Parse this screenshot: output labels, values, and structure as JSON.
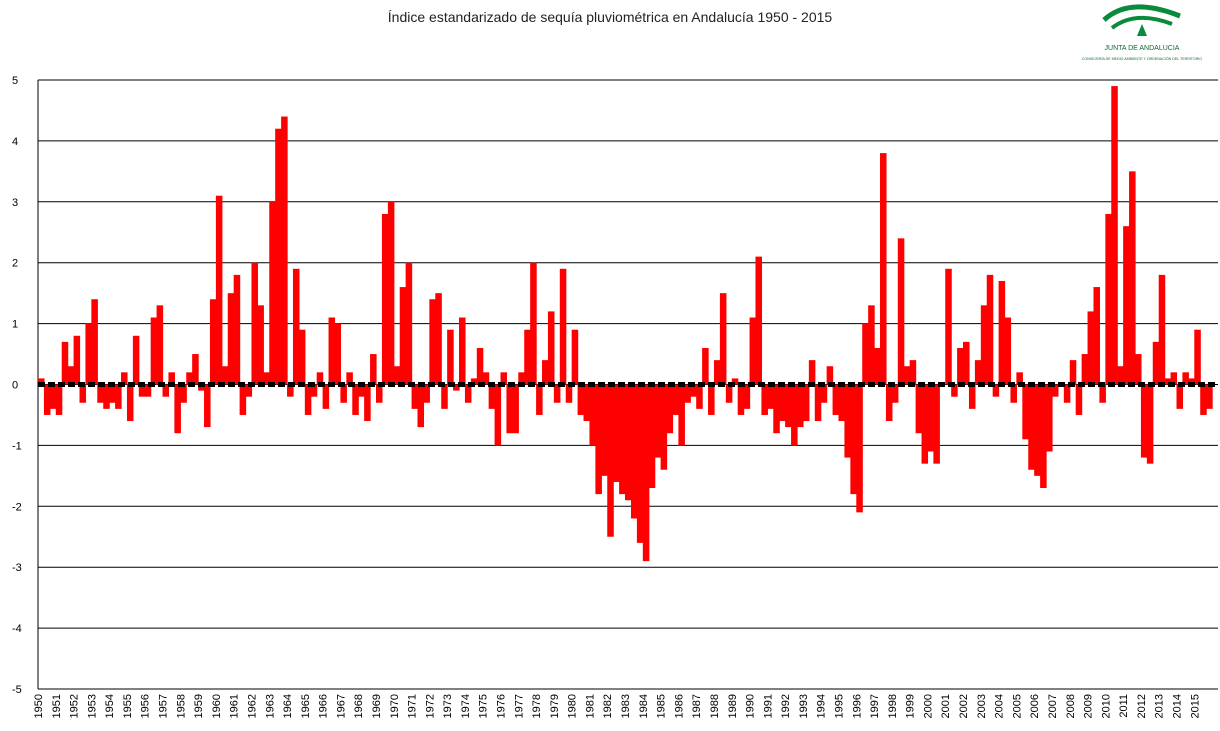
{
  "chart_data": {
    "type": "bar",
    "title": "Índice estandarizado de sequía pluviométrica en Andalucía 1950 - 2015",
    "logo": {
      "name": "JUNTA DE ANDALUCIA",
      "department": "CONSEJERÍA DE MEDIO AMBIENTE Y ORDENACIÓN DEL TERRITORIO"
    },
    "color": "#ff0000",
    "ylim": [
      -5,
      5
    ],
    "yticks": [
      -5,
      -4,
      -3,
      -2,
      -1,
      0,
      1,
      2,
      3,
      4,
      5
    ],
    "grid": true,
    "categories": [
      "1950",
      null,
      null,
      "1951",
      null,
      null,
      "1952",
      null,
      null,
      "1953",
      null,
      null,
      "1954",
      null,
      null,
      "1955",
      null,
      null,
      "1956",
      null,
      null,
      "1957",
      null,
      null,
      "1958",
      null,
      null,
      "1959",
      null,
      null,
      "1960",
      null,
      null,
      "1961",
      null,
      null,
      "1962",
      null,
      null,
      "1963",
      null,
      null,
      "1964",
      null,
      null,
      "1965",
      null,
      null,
      "1966",
      null,
      null,
      "1967",
      null,
      null,
      "1968",
      null,
      null,
      "1969",
      null,
      null,
      "1970",
      null,
      null,
      "1971",
      null,
      null,
      "1972",
      null,
      null,
      "1973",
      null,
      null,
      "1974",
      null,
      null,
      "1975",
      null,
      null,
      "1976",
      null,
      null,
      "1977",
      null,
      null,
      "1978",
      null,
      null,
      "1979",
      null,
      null,
      "1980",
      null,
      null,
      "1981",
      null,
      null,
      "1982",
      null,
      null,
      "1983",
      null,
      null,
      "1984",
      null,
      null,
      "1985",
      null,
      null,
      "1986",
      null,
      null,
      "1987",
      null,
      null,
      "1988",
      null,
      null,
      "1989",
      null,
      null,
      "1990",
      null,
      null,
      "1991",
      null,
      null,
      "1992",
      null,
      null,
      "1993",
      null,
      null,
      "1994",
      null,
      null,
      "1995",
      null,
      null,
      "1996",
      null,
      null,
      "1997",
      null,
      null,
      "1998",
      null,
      null,
      "1999",
      null,
      null,
      "2000",
      null,
      null,
      "2001",
      null,
      null,
      "2002",
      null,
      null,
      "2003",
      null,
      null,
      "2004",
      null,
      null,
      "2005",
      null,
      null,
      "2006",
      null,
      null,
      "2007",
      null,
      null,
      "2008",
      null,
      null,
      "2009",
      null,
      null,
      "2010",
      null,
      null,
      "2011",
      null,
      null,
      "2012",
      null,
      null,
      "2013",
      null,
      null,
      "2014",
      null,
      null,
      "2015",
      null,
      null
    ],
    "values": [
      0.1,
      -0.5,
      -0.4,
      -0.5,
      0.7,
      0.3,
      0.8,
      -0.3,
      1.0,
      1.4,
      -0.3,
      -0.4,
      -0.3,
      -0.4,
      0.2,
      -0.6,
      0.8,
      -0.2,
      -0.2,
      1.1,
      1.3,
      -0.2,
      0.2,
      -0.8,
      -0.3,
      0.2,
      0.5,
      -0.1,
      -0.7,
      1.4,
      3.1,
      0.3,
      1.5,
      1.8,
      -0.5,
      -0.2,
      2.0,
      1.3,
      0.2,
      3.0,
      4.2,
      4.4,
      -0.2,
      1.9,
      0.9,
      -0.5,
      -0.2,
      0.2,
      -0.4,
      1.1,
      1.0,
      -0.3,
      0.2,
      -0.5,
      -0.2,
      -0.6,
      0.5,
      -0.3,
      2.8,
      3.0,
      0.3,
      1.6,
      2.0,
      -0.4,
      -0.7,
      -0.3,
      1.4,
      1.5,
      -0.4,
      0.9,
      -0.1,
      1.1,
      -0.3,
      0.1,
      0.6,
      0.2,
      -0.4,
      -1.0,
      0.2,
      -0.8,
      -0.8,
      0.2,
      0.9,
      2.0,
      -0.5,
      0.4,
      1.2,
      -0.3,
      1.9,
      -0.3,
      0.9,
      -0.5,
      -0.6,
      -1.0,
      -1.8,
      -1.5,
      -2.5,
      -1.6,
      -1.8,
      -1.9,
      -2.2,
      -2.6,
      -2.9,
      -1.7,
      -1.2,
      -1.4,
      -0.8,
      -0.5,
      -1.0,
      -0.3,
      -0.2,
      -0.4,
      0.6,
      -0.5,
      0.4,
      1.5,
      -0.3,
      0.1,
      -0.5,
      -0.4,
      1.1,
      2.1,
      -0.5,
      -0.4,
      -0.8,
      -0.6,
      -0.7,
      -1.0,
      -0.7,
      -0.6,
      0.4,
      -0.6,
      -0.3,
      0.3,
      -0.5,
      -0.6,
      -1.2,
      -1.8,
      -2.1,
      1.0,
      1.3,
      0.6,
      3.8,
      -0.6,
      -0.3,
      2.4,
      0.3,
      0.4,
      -0.8,
      -1.3,
      -1.1,
      -1.3,
      0.0,
      1.9,
      -0.2,
      0.6,
      0.7,
      -0.4,
      0.4,
      1.3,
      1.8,
      -0.2,
      1.7,
      1.1,
      -0.3,
      0.2,
      -0.9,
      -1.4,
      -1.5,
      -1.7,
      -1.1,
      -0.2,
      0.0,
      -0.3,
      0.4,
      -0.5,
      0.5,
      1.2,
      1.6,
      -0.3,
      2.8,
      4.9,
      0.3,
      2.6,
      3.5,
      0.5,
      -1.2,
      -1.3,
      0.7,
      1.8,
      0.1,
      0.2,
      -0.4,
      0.2,
      0.1,
      0.9,
      -0.5,
      -0.4
    ]
  }
}
